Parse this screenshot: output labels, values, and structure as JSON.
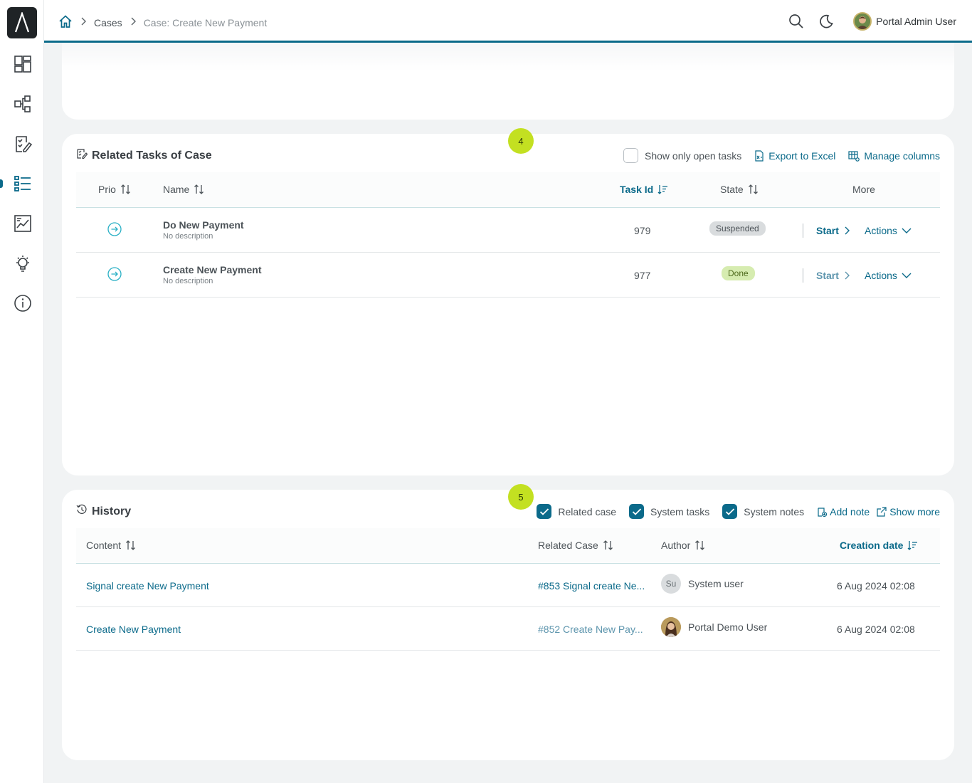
{
  "breadcrumb": {
    "home_icon": "home-icon",
    "items": [
      "Cases",
      "Case: Create New Payment"
    ]
  },
  "header": {
    "user_name": "Portal Admin User",
    "icons": [
      "search-icon",
      "moon-icon"
    ]
  },
  "sidebar": {
    "items": [
      {
        "icon": "dashboard-icon"
      },
      {
        "icon": "process-icon"
      },
      {
        "icon": "tasks-icon"
      },
      {
        "icon": "cases-icon",
        "active": true
      },
      {
        "icon": "statistics-icon"
      },
      {
        "icon": "lightbulb-icon"
      },
      {
        "icon": "info-icon"
      }
    ]
  },
  "tasks": {
    "step": "4",
    "title": "Related Tasks of Case",
    "show_open_label": "Show only open tasks",
    "export_label": "Export to Excel",
    "manage_label": "Manage columns",
    "columns": {
      "prio": "Prio",
      "name": "Name",
      "task_id": "Task Id",
      "state": "State",
      "more": "More"
    },
    "rows": [
      {
        "name": "Do New Payment",
        "desc": "No description",
        "id": "979",
        "state": "Suspended",
        "start": "Start",
        "actions": "Actions"
      },
      {
        "name": "Create New Payment",
        "desc": "No description",
        "id": "977",
        "state": "Done",
        "start": "Start",
        "actions": "Actions"
      }
    ]
  },
  "history": {
    "step": "5",
    "title": "History",
    "related_case_label": "Related case",
    "system_tasks_label": "System tasks",
    "system_notes_label": "System notes",
    "add_note_label": "Add note",
    "show_more_label": "Show more",
    "columns": {
      "content": "Content",
      "related_case": "Related Case",
      "author": "Author",
      "creation_date": "Creation date"
    },
    "rows": [
      {
        "content": "Signal create New Payment",
        "related_case": "#853 Signal create Ne...",
        "author_initials": "Su",
        "author": "System user",
        "date": "6 Aug 2024 02:08"
      },
      {
        "content": "Create New Payment",
        "related_case": "#852 Create New Pay...",
        "author_initials": "",
        "author": "Portal Demo User",
        "date": "6 Aug 2024 02:08"
      }
    ]
  },
  "colors": {
    "accent": "#0b6a8a",
    "step_badge": "#c3e021",
    "suspended_bg": "#d9dcde",
    "done_bg": "#d6ecb0"
  }
}
